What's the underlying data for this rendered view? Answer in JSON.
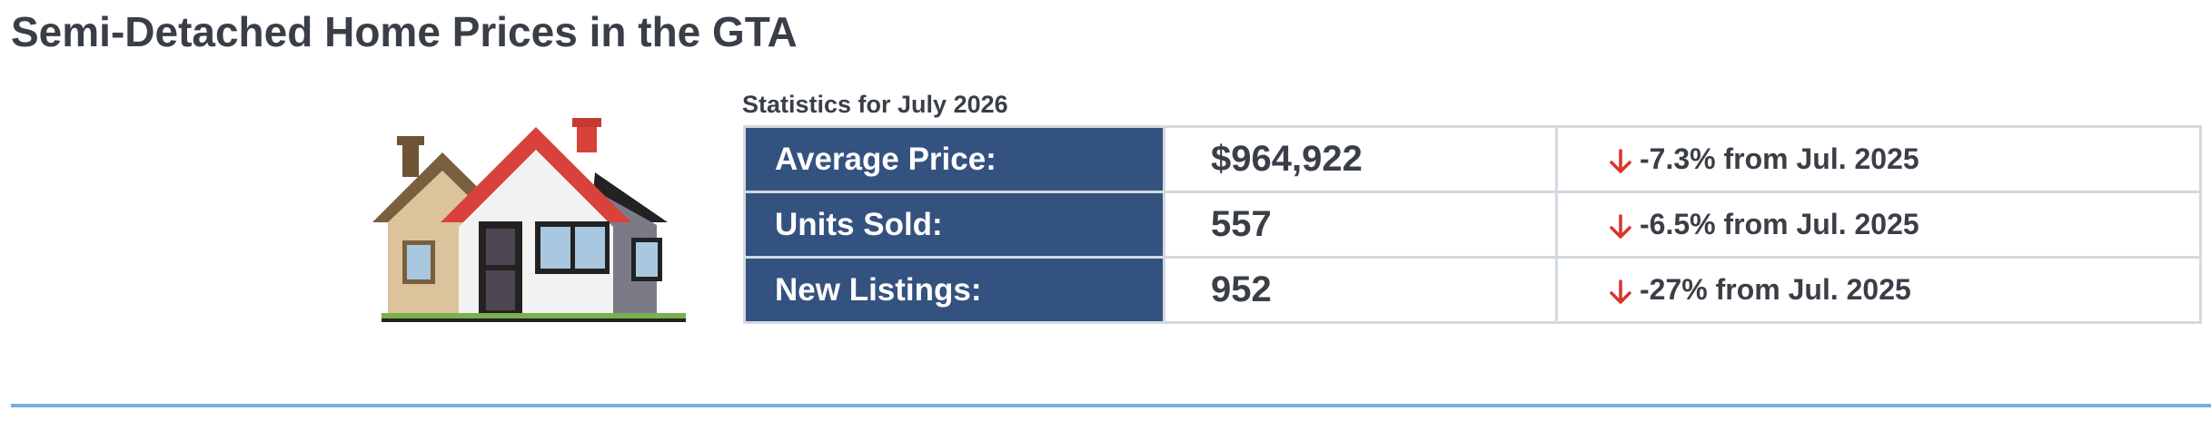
{
  "header": {
    "title": "Semi-Detached Home Prices in the GTA"
  },
  "table": {
    "caption": "Statistics for July 2026",
    "rows": [
      [
        "Average Price:",
        "$964,922",
        "-7.3% from Jul. 2025"
      ],
      [
        "Units Sold:",
        "557",
        "-6.5% from Jul. 2025"
      ],
      [
        "New Listings:",
        "952",
        "-27% from Jul. 2025"
      ]
    ]
  }
}
